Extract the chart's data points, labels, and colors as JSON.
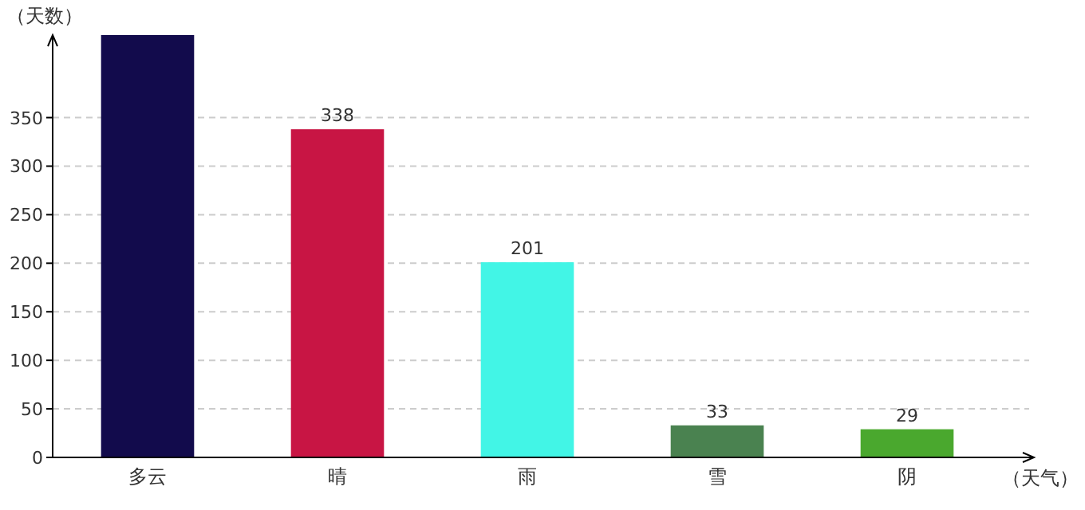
{
  "chart_data": {
    "type": "bar",
    "xlabel": "（天气）",
    "ylabel": "（天数）",
    "categories": [
      "多云",
      "晴",
      "雨",
      "雪",
      "阴"
    ],
    "values": [
      435,
      338,
      201,
      33,
      29
    ],
    "colors": [
      "#120b4c",
      "#c81544",
      "#42f5e6",
      "#4a8250",
      "#4aa82e"
    ],
    "value_labels": [
      null,
      "338",
      "201",
      "33",
      "29"
    ],
    "ylim": [
      0,
      435
    ],
    "yticks": [
      0,
      50,
      100,
      150,
      200,
      250,
      300,
      350
    ],
    "grid": "y"
  }
}
